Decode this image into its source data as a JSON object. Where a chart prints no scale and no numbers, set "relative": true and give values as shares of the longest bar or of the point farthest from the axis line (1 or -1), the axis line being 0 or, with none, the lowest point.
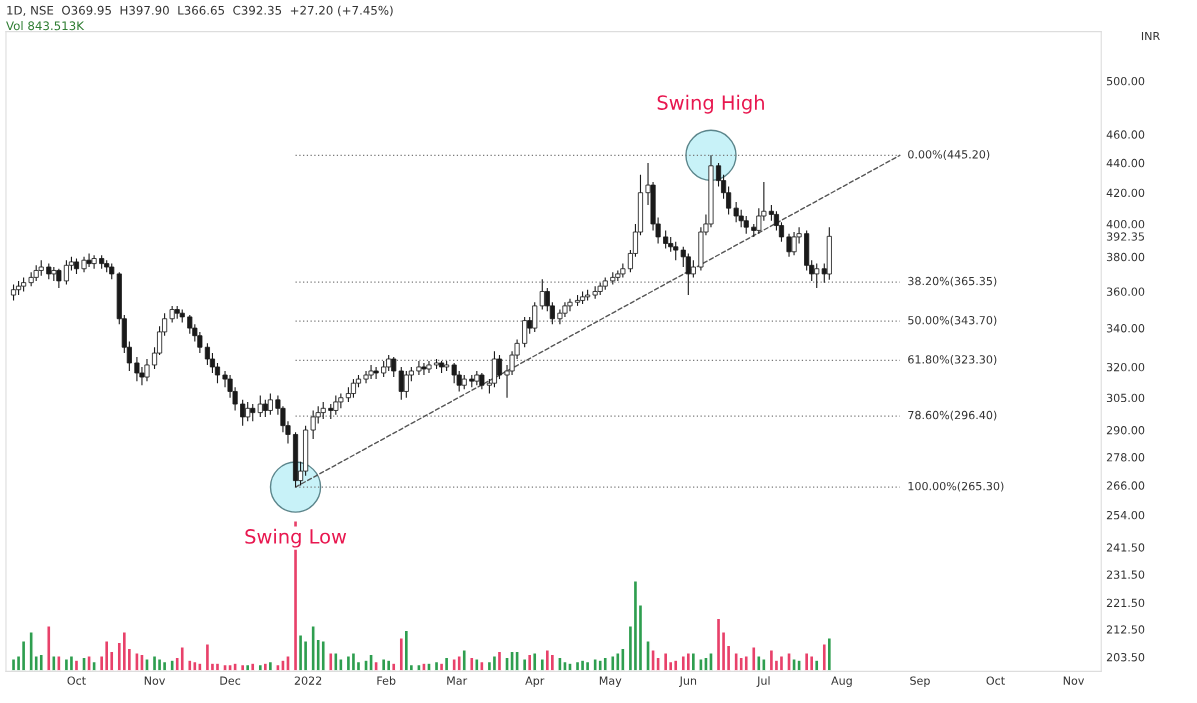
{
  "chart_data": [
    {
      "type": "candlestick",
      "title": "1D, NSE  O369.95  H397.90  L366.65  C392.35  +27.20 (+7.45%)",
      "ylabel": "INR",
      "color": "#1a1a1a",
      "log": true,
      "ylim": [
        199,
        540
      ],
      "yticks": [
        {
          "value": 203.5,
          "label": "203.50"
        },
        {
          "value": 212.5,
          "label": "212.50"
        },
        {
          "value": 221.5,
          "label": "221.50"
        },
        {
          "value": 231.5,
          "label": "231.50"
        },
        {
          "value": 241.5,
          "label": "241.50"
        },
        {
          "value": 254,
          "label": "254.00"
        },
        {
          "value": 266,
          "label": "266.00"
        },
        {
          "value": 278,
          "label": "278.00"
        },
        {
          "value": 290,
          "label": "290.00"
        },
        {
          "value": 305,
          "label": "305.00"
        },
        {
          "value": 320,
          "label": "320.00"
        },
        {
          "value": 340,
          "label": "340.00"
        },
        {
          "value": 360,
          "label": "360.00"
        },
        {
          "value": 380,
          "label": "380.00"
        },
        392.35,
        {
          "value": 400,
          "label": "400.00"
        },
        {
          "value": 420,
          "label": "420.00"
        },
        {
          "value": 440,
          "label": "440.00"
        },
        {
          "value": 460,
          "label": "460.00"
        },
        {
          "value": 500,
          "label": "500.00"
        }
      ],
      "xlim": [
        "2021-09-03",
        "2022-11-12"
      ],
      "xticks": [
        {
          "value": "2021-10-01",
          "label": "Oct"
        },
        {
          "value": "2021-11-01",
          "label": "Nov"
        },
        {
          "value": "2021-12-01",
          "label": "Dec"
        },
        {
          "value": "2022-01-01",
          "label": "2022"
        },
        {
          "value": "2022-02-01",
          "label": "Feb"
        },
        {
          "value": "2022-03-01",
          "label": "Mar"
        },
        {
          "value": "2022-04-01",
          "label": "Apr"
        },
        {
          "value": "2022-05-01",
          "label": "May"
        },
        {
          "value": "2022-06-01",
          "label": "Jun"
        },
        {
          "value": "2022-07-01",
          "label": "Jul"
        },
        {
          "value": "2022-08-01",
          "label": "Aug"
        },
        {
          "value": "2022-09-01",
          "label": "Sep"
        },
        {
          "value": "2022-10-01",
          "label": "Oct"
        },
        {
          "value": "2022-11-01",
          "label": "Nov"
        }
      ],
      "x": [
        "2021-09-06",
        "2021-09-08",
        "2021-09-10",
        "2021-09-13",
        "2021-09-15",
        "2021-09-17",
        "2021-09-20",
        "2021-09-22",
        "2021-09-24",
        "2021-09-27",
        "2021-09-29",
        "2021-10-01",
        "2021-10-04",
        "2021-10-06",
        "2021-10-08",
        "2021-10-11",
        "2021-10-13",
        "2021-10-15",
        "2021-10-18",
        "2021-10-20",
        "2021-10-22",
        "2021-10-25",
        "2021-10-27",
        "2021-10-29",
        "2021-11-01",
        "2021-11-03",
        "2021-11-05",
        "2021-11-08",
        "2021-11-10",
        "2021-11-12",
        "2021-11-15",
        "2021-11-17",
        "2021-11-19",
        "2021-11-22",
        "2021-11-24",
        "2021-11-26",
        "2021-11-29",
        "2021-12-01",
        "2021-12-03",
        "2021-12-06",
        "2021-12-08",
        "2021-12-10",
        "2021-12-13",
        "2021-12-15",
        "2021-12-17",
        "2021-12-20",
        "2021-12-22",
        "2021-12-24",
        "2021-12-27",
        "2021-12-29",
        "2021-12-31",
        "2022-01-03",
        "2022-01-05",
        "2022-01-07",
        "2022-01-10",
        "2022-01-12",
        "2022-01-14",
        "2022-01-17",
        "2022-01-19",
        "2022-01-21",
        "2022-01-24",
        "2022-01-26",
        "2022-01-28",
        "2022-01-31",
        "2022-02-02",
        "2022-02-04",
        "2022-02-07",
        "2022-02-09",
        "2022-02-11",
        "2022-02-14",
        "2022-02-16",
        "2022-02-18",
        "2022-02-21",
        "2022-02-23",
        "2022-02-25",
        "2022-02-28",
        "2022-03-02",
        "2022-03-04",
        "2022-03-07",
        "2022-03-09",
        "2022-03-11",
        "2022-03-14",
        "2022-03-16",
        "2022-03-18",
        "2022-03-21",
        "2022-03-23",
        "2022-03-25",
        "2022-03-28",
        "2022-03-30",
        "2022-04-01",
        "2022-04-04",
        "2022-04-06",
        "2022-04-08",
        "2022-04-11",
        "2022-04-13",
        "2022-04-15",
        "2022-04-18",
        "2022-04-20",
        "2022-04-22",
        "2022-04-25",
        "2022-04-27",
        "2022-04-29",
        "2022-05-02",
        "2022-05-04",
        "2022-05-06",
        "2022-05-09",
        "2022-05-11",
        "2022-05-13",
        "2022-05-16",
        "2022-05-18",
        "2022-05-20",
        "2022-05-23",
        "2022-05-25",
        "2022-05-27",
        "2022-05-30",
        "2022-06-01",
        "2022-06-03",
        "2022-06-06",
        "2022-06-08",
        "2022-06-10",
        "2022-06-13",
        "2022-06-15",
        "2022-06-17",
        "2022-06-20",
        "2022-06-22",
        "2022-06-24",
        "2022-06-27",
        "2022-06-29",
        "2022-07-01",
        "2022-07-04",
        "2022-07-06",
        "2022-07-08",
        "2022-07-11",
        "2022-07-13",
        "2022-07-15",
        "2022-07-18",
        "2022-07-20",
        "2022-07-22",
        "2022-07-25",
        "2022-07-27"
      ],
      "ohlc": [
        [
          358,
          364,
          355,
          361
        ],
        [
          361,
          366,
          358,
          363
        ],
        [
          363,
          368,
          360,
          365
        ],
        [
          365,
          371,
          363,
          368
        ],
        [
          368,
          375,
          366,
          372
        ],
        [
          372,
          378,
          369,
          374
        ],
        [
          374,
          376,
          367,
          370
        ],
        [
          370,
          374,
          366,
          372
        ],
        [
          372,
          373,
          362,
          366
        ],
        [
          366,
          378,
          364,
          375
        ],
        [
          375,
          380,
          372,
          377
        ],
        [
          377,
          379,
          370,
          373
        ],
        [
          373,
          380,
          371,
          378
        ],
        [
          378,
          382,
          374,
          376
        ],
        [
          376,
          381,
          373,
          379
        ],
        [
          379,
          381,
          373,
          376
        ],
        [
          376,
          378,
          371,
          374
        ],
        [
          374,
          376,
          367,
          370
        ],
        [
          370,
          371,
          342,
          345
        ],
        [
          345,
          347,
          327,
          330
        ],
        [
          330,
          333,
          318,
          322
        ],
        [
          322,
          325,
          313,
          317
        ],
        [
          317,
          320,
          311,
          315
        ],
        [
          315,
          324,
          313,
          321
        ],
        [
          321,
          330,
          319,
          327
        ],
        [
          327,
          341,
          326,
          338
        ],
        [
          338,
          348,
          336,
          345
        ],
        [
          345,
          352,
          343,
          350
        ],
        [
          350,
          352,
          345,
          348
        ],
        [
          348,
          350,
          343,
          346
        ],
        [
          346,
          347,
          337,
          340
        ],
        [
          340,
          342,
          333,
          336
        ],
        [
          336,
          338,
          327,
          330
        ],
        [
          330,
          332,
          321,
          324
        ],
        [
          324,
          327,
          317,
          320
        ],
        [
          320,
          322,
          312,
          316
        ],
        [
          316,
          318,
          310,
          314
        ],
        [
          314,
          316,
          305,
          308
        ],
        [
          308,
          310,
          299,
          302
        ],
        [
          302,
          304,
          292,
          296
        ],
        [
          296,
          303,
          294,
          300
        ],
        [
          300,
          302,
          294,
          298
        ],
        [
          298,
          306,
          296,
          302
        ],
        [
          302,
          304,
          296,
          299
        ],
        [
          299,
          307,
          297,
          304
        ],
        [
          304,
          306,
          297,
          300
        ],
        [
          300,
          301,
          289,
          292
        ],
        [
          292,
          294,
          284,
          288
        ],
        [
          288,
          289,
          265.3,
          268
        ],
        [
          268,
          276,
          266,
          272
        ],
        [
          272,
          292,
          270,
          290
        ],
        [
          290,
          299,
          286,
          296
        ],
        [
          296,
          301,
          293,
          298
        ],
        [
          298,
          303,
          295,
          300
        ],
        [
          300,
          302,
          295,
          299
        ],
        [
          299,
          306,
          297,
          303
        ],
        [
          303,
          307,
          300,
          305
        ],
        [
          305,
          310,
          303,
          307
        ],
        [
          307,
          314,
          305,
          312
        ],
        [
          312,
          316,
          310,
          314
        ],
        [
          314,
          318,
          312,
          316
        ],
        [
          316,
          321,
          314,
          318
        ],
        [
          318,
          320,
          314,
          317
        ],
        [
          317,
          323,
          315,
          320
        ],
        [
          320,
          326,
          318,
          324
        ],
        [
          324,
          325,
          315,
          318
        ],
        [
          318,
          320,
          304,
          308
        ],
        [
          308,
          318,
          305,
          316
        ],
        [
          316,
          320,
          313,
          318
        ],
        [
          318,
          323,
          316,
          320
        ],
        [
          320,
          322,
          316,
          319
        ],
        [
          319,
          323,
          317,
          321
        ],
        [
          321,
          324,
          319,
          322
        ],
        [
          322,
          323,
          317,
          320
        ],
        [
          320,
          323,
          318,
          321
        ],
        [
          321,
          322,
          312,
          316
        ],
        [
          316,
          318,
          308,
          311
        ],
        [
          311,
          316,
          309,
          314
        ],
        [
          314,
          316,
          310,
          313
        ],
        [
          313,
          318,
          311,
          316
        ],
        [
          316,
          317,
          309,
          311
        ],
        [
          311,
          314,
          307,
          312
        ],
        [
          312,
          328,
          310,
          324
        ],
        [
          324,
          326,
          314,
          316
        ],
        [
          316,
          321,
          305,
          318
        ],
        [
          318,
          328,
          316,
          326
        ],
        [
          326,
          334,
          324,
          332
        ],
        [
          332,
          346,
          330,
          344
        ],
        [
          344,
          346,
          337,
          340
        ],
        [
          340,
          354,
          338,
          352
        ],
        [
          352,
          367,
          350,
          360
        ],
        [
          360,
          362,
          349,
          352
        ],
        [
          352,
          354,
          342,
          345
        ],
        [
          345,
          350,
          342,
          348
        ],
        [
          348,
          354,
          346,
          352
        ],
        [
          352,
          356,
          349,
          354
        ],
        [
          354,
          358,
          352,
          355
        ],
        [
          355,
          360,
          353,
          357
        ],
        [
          357,
          361,
          355,
          358
        ],
        [
          358,
          363,
          356,
          360
        ],
        [
          360,
          365,
          358,
          363
        ],
        [
          363,
          368,
          361,
          366
        ],
        [
          366,
          371,
          364,
          368
        ],
        [
          368,
          372,
          366,
          370
        ],
        [
          370,
          376,
          368,
          373
        ],
        [
          373,
          384,
          371,
          382
        ],
        [
          382,
          400,
          380,
          395
        ],
        [
          395,
          432,
          393,
          420
        ],
        [
          420,
          440,
          412,
          425
        ],
        [
          425,
          427,
          396,
          400
        ],
        [
          400,
          404,
          388,
          392
        ],
        [
          392,
          396,
          385,
          388
        ],
        [
          388,
          392,
          383,
          386
        ],
        [
          386,
          389,
          378,
          384
        ],
        [
          384,
          386,
          374,
          380
        ],
        [
          380,
          382,
          358,
          370
        ],
        [
          370,
          378,
          368,
          374
        ],
        [
          374,
          398,
          372,
          395
        ],
        [
          395,
          406,
          393,
          400
        ],
        [
          400,
          445.2,
          398,
          438
        ],
        [
          438,
          440,
          424,
          428
        ],
        [
          428,
          432,
          416,
          420
        ],
        [
          420,
          424,
          406,
          410
        ],
        [
          410,
          414,
          401,
          405
        ],
        [
          405,
          409,
          398,
          402
        ],
        [
          402,
          405,
          394,
          398
        ],
        [
          398,
          400,
          392,
          396
        ],
        [
          396,
          410,
          394,
          405
        ],
        [
          405,
          427,
          402,
          408
        ],
        [
          408,
          412,
          402,
          406
        ],
        [
          406,
          408,
          396,
          399
        ],
        [
          399,
          401,
          389,
          392
        ],
        [
          392,
          394,
          380,
          383
        ],
        [
          383,
          395,
          381,
          392
        ],
        [
          392,
          398,
          388,
          394
        ],
        [
          394,
          396,
          372,
          375
        ],
        [
          375,
          378,
          366,
          370
        ],
        [
          370,
          376,
          362,
          373
        ],
        [
          373,
          376,
          365,
          370
        ],
        [
          369.95,
          397.9,
          366.65,
          392.35
        ]
      ],
      "series": [
        {
          "type": "line",
          "color": "#555555",
          "line_style": "dashed",
          "x": [
            "2021-12-27",
            "2022-08-24"
          ],
          "values": [
            265.3,
            445.2
          ]
        }
      ],
      "ref_lines": [
        {
          "axis": "y",
          "value": 445.2,
          "label": "0.00%(445.20)",
          "color": "#777777",
          "line_style": "dotted"
        },
        {
          "axis": "y",
          "value": 365.35,
          "label": "38.20%(365.35)",
          "color": "#777777",
          "line_style": "dotted"
        },
        {
          "axis": "y",
          "value": 343.7,
          "label": "50.00%(343.70)",
          "color": "#777777",
          "line_style": "dotted"
        },
        {
          "axis": "y",
          "value": 323.3,
          "label": "61.80%(323.30)",
          "color": "#777777",
          "line_style": "dotted"
        },
        {
          "axis": "y",
          "value": 296.4,
          "label": "78.60%(296.40)",
          "color": "#777777",
          "line_style": "dotted"
        },
        {
          "axis": "y",
          "value": 265.3,
          "label": "100.00%(265.30)",
          "color": "#777777",
          "line_style": "dotted"
        }
      ],
      "annotations": [
        {
          "text": "Swing High",
          "x": "2022-06-10",
          "y": 445.2
        },
        {
          "text": "Swing Low",
          "x": "2021-12-27",
          "y": 265.3
        }
      ]
    },
    {
      "type": "bar",
      "relative": true,
      "tick_labels": false,
      "annotations": [
        "Vol 843.513K"
      ],
      "xlim": [
        "2021-09-03",
        "2022-11-12"
      ],
      "x": [
        "2021-09-06",
        "2021-09-08",
        "2021-09-10",
        "2021-09-13",
        "2021-09-15",
        "2021-09-17",
        "2021-09-20",
        "2021-09-22",
        "2021-09-24",
        "2021-09-27",
        "2021-09-29",
        "2021-10-01",
        "2021-10-04",
        "2021-10-06",
        "2021-10-08",
        "2021-10-11",
        "2021-10-13",
        "2021-10-15",
        "2021-10-18",
        "2021-10-20",
        "2021-10-22",
        "2021-10-25",
        "2021-10-27",
        "2021-10-29",
        "2021-11-01",
        "2021-11-03",
        "2021-11-05",
        "2021-11-08",
        "2021-11-10",
        "2021-11-12",
        "2021-11-15",
        "2021-11-17",
        "2021-11-19",
        "2021-11-22",
        "2021-11-24",
        "2021-11-26",
        "2021-11-29",
        "2021-12-01",
        "2021-12-03",
        "2021-12-06",
        "2021-12-08",
        "2021-12-10",
        "2021-12-13",
        "2021-12-15",
        "2021-12-17",
        "2021-12-20",
        "2021-12-22",
        "2021-12-24",
        "2021-12-27",
        "2021-12-29",
        "2021-12-31",
        "2022-01-03",
        "2022-01-05",
        "2022-01-07",
        "2022-01-10",
        "2022-01-12",
        "2022-01-14",
        "2022-01-17",
        "2022-01-19",
        "2022-01-21",
        "2022-01-24",
        "2022-01-26",
        "2022-01-28",
        "2022-01-31",
        "2022-02-02",
        "2022-02-04",
        "2022-02-07",
        "2022-02-09",
        "2022-02-11",
        "2022-02-14",
        "2022-02-16",
        "2022-02-18",
        "2022-02-21",
        "2022-02-23",
        "2022-02-25",
        "2022-02-28",
        "2022-03-02",
        "2022-03-04",
        "2022-03-07",
        "2022-03-09",
        "2022-03-11",
        "2022-03-14",
        "2022-03-16",
        "2022-03-18",
        "2022-03-21",
        "2022-03-23",
        "2022-03-25",
        "2022-03-28",
        "2022-03-30",
        "2022-04-01",
        "2022-04-04",
        "2022-04-06",
        "2022-04-08",
        "2022-04-11",
        "2022-04-13",
        "2022-04-15",
        "2022-04-18",
        "2022-04-20",
        "2022-04-22",
        "2022-04-25",
        "2022-04-27",
        "2022-04-29",
        "2022-05-02",
        "2022-05-04",
        "2022-05-06",
        "2022-05-09",
        "2022-05-11",
        "2022-05-13",
        "2022-05-16",
        "2022-05-18",
        "2022-05-20",
        "2022-05-23",
        "2022-05-25",
        "2022-05-27",
        "2022-05-30",
        "2022-06-01",
        "2022-06-03",
        "2022-06-06",
        "2022-06-08",
        "2022-06-10",
        "2022-06-13",
        "2022-06-15",
        "2022-06-17",
        "2022-06-20",
        "2022-06-22",
        "2022-06-24",
        "2022-06-27",
        "2022-06-29",
        "2022-07-01",
        "2022-07-04",
        "2022-07-06",
        "2022-07-08",
        "2022-07-11",
        "2022-07-13",
        "2022-07-15",
        "2022-07-18",
        "2022-07-20",
        "2022-07-22",
        "2022-07-25",
        "2022-07-27"
      ],
      "values": [
        0.08,
        0.1,
        0.2,
        0.26,
        0.1,
        0.11,
        0.3,
        0.1,
        0.1,
        0.08,
        0.1,
        0.07,
        0.09,
        0.1,
        0.06,
        0.1,
        0.2,
        0.13,
        0.19,
        0.26,
        0.15,
        0.12,
        0.11,
        0.08,
        0.1,
        0.08,
        0.06,
        0.07,
        0.09,
        0.16,
        0.07,
        0.06,
        0.05,
        0.18,
        0.05,
        0.05,
        0.04,
        0.04,
        0.05,
        0.04,
        0.04,
        0.05,
        0.04,
        0.05,
        0.06,
        0.04,
        0.07,
        0.1,
        1,
        0.24,
        0.2,
        0.3,
        0.21,
        0.2,
        0.12,
        0.12,
        0.08,
        0.1,
        0.12,
        0.06,
        0.07,
        0.11,
        0.06,
        0.08,
        0.07,
        0.05,
        0.22,
        0.27,
        0.04,
        0.04,
        0.05,
        0.05,
        0.06,
        0.05,
        0.09,
        0.08,
        0.1,
        0.14,
        0.09,
        0.08,
        0.06,
        0.06,
        0.1,
        0.13,
        0.09,
        0.13,
        0.13,
        0.08,
        0.11,
        0.12,
        0.08,
        0.14,
        0.11,
        0.09,
        0.06,
        0.05,
        0.06,
        0.07,
        0.06,
        0.08,
        0.07,
        0.09,
        0.1,
        0.12,
        0.15,
        0.3,
        0.6,
        0.44,
        0.2,
        0.14,
        0.09,
        0.12,
        0.06,
        0.07,
        0.1,
        0.12,
        0.12,
        0.08,
        0.09,
        0.12,
        0.35,
        0.26,
        0.17,
        0.12,
        0.09,
        0.1,
        0.16,
        0.1,
        0.08,
        0.14,
        0.07,
        0.1,
        0.12,
        0.08,
        0.07,
        0.12,
        0.1,
        0.07,
        0.18,
        0.22
      ],
      "colors": [
        "#2e9e4f",
        "#2e9e4f",
        "#2e9e4f",
        "#2e9e4f",
        "#2e9e4f",
        "#2e9e4f",
        "#e8416a",
        "#2e9e4f",
        "#e8416a",
        "#2e9e4f",
        "#2e9e4f",
        "#e8416a",
        "#2e9e4f",
        "#e8416a",
        "#2e9e4f",
        "#e8416a",
        "#e8416a",
        "#e8416a",
        "#e8416a",
        "#e8416a",
        "#e8416a",
        "#e8416a",
        "#e8416a",
        "#2e9e4f",
        "#2e9e4f",
        "#2e9e4f",
        "#2e9e4f",
        "#2e9e4f",
        "#e8416a",
        "#e8416a",
        "#e8416a",
        "#e8416a",
        "#e8416a",
        "#e8416a",
        "#e8416a",
        "#e8416a",
        "#e8416a",
        "#e8416a",
        "#e8416a",
        "#e8416a",
        "#2e9e4f",
        "#e8416a",
        "#2e9e4f",
        "#e8416a",
        "#2e9e4f",
        "#e8416a",
        "#e8416a",
        "#e8416a",
        "#e8416a",
        "#2e9e4f",
        "#2e9e4f",
        "#2e9e4f",
        "#2e9e4f",
        "#2e9e4f",
        "#e8416a",
        "#2e9e4f",
        "#2e9e4f",
        "#2e9e4f",
        "#2e9e4f",
        "#2e9e4f",
        "#2e9e4f",
        "#2e9e4f",
        "#e8416a",
        "#2e9e4f",
        "#2e9e4f",
        "#e8416a",
        "#e8416a",
        "#2e9e4f",
        "#2e9e4f",
        "#2e9e4f",
        "#e8416a",
        "#2e9e4f",
        "#2e9e4f",
        "#e8416a",
        "#2e9e4f",
        "#e8416a",
        "#e8416a",
        "#2e9e4f",
        "#e8416a",
        "#2e9e4f",
        "#e8416a",
        "#2e9e4f",
        "#2e9e4f",
        "#e8416a",
        "#2e9e4f",
        "#2e9e4f",
        "#2e9e4f",
        "#2e9e4f",
        "#e8416a",
        "#2e9e4f",
        "#2e9e4f",
        "#e8416a",
        "#e8416a",
        "#2e9e4f",
        "#2e9e4f",
        "#2e9e4f",
        "#2e9e4f",
        "#2e9e4f",
        "#2e9e4f",
        "#2e9e4f",
        "#2e9e4f",
        "#2e9e4f",
        "#2e9e4f",
        "#2e9e4f",
        "#2e9e4f",
        "#2e9e4f",
        "#2e9e4f",
        "#2e9e4f",
        "#2e9e4f",
        "#e8416a",
        "#e8416a",
        "#e8416a",
        "#e8416a",
        "#e8416a",
        "#e8416a",
        "#e8416a",
        "#2e9e4f",
        "#2e9e4f",
        "#2e9e4f",
        "#2e9e4f",
        "#e8416a",
        "#e8416a",
        "#e8416a",
        "#e8416a",
        "#e8416a",
        "#e8416a",
        "#e8416a",
        "#2e9e4f",
        "#2e9e4f",
        "#e8416a",
        "#e8416a",
        "#e8416a",
        "#e8416a",
        "#2e9e4f",
        "#2e9e4f",
        "#e8416a",
        "#e8416a",
        "#2e9e4f",
        "#e8416a",
        "#2e9e4f"
      ]
    }
  ]
}
